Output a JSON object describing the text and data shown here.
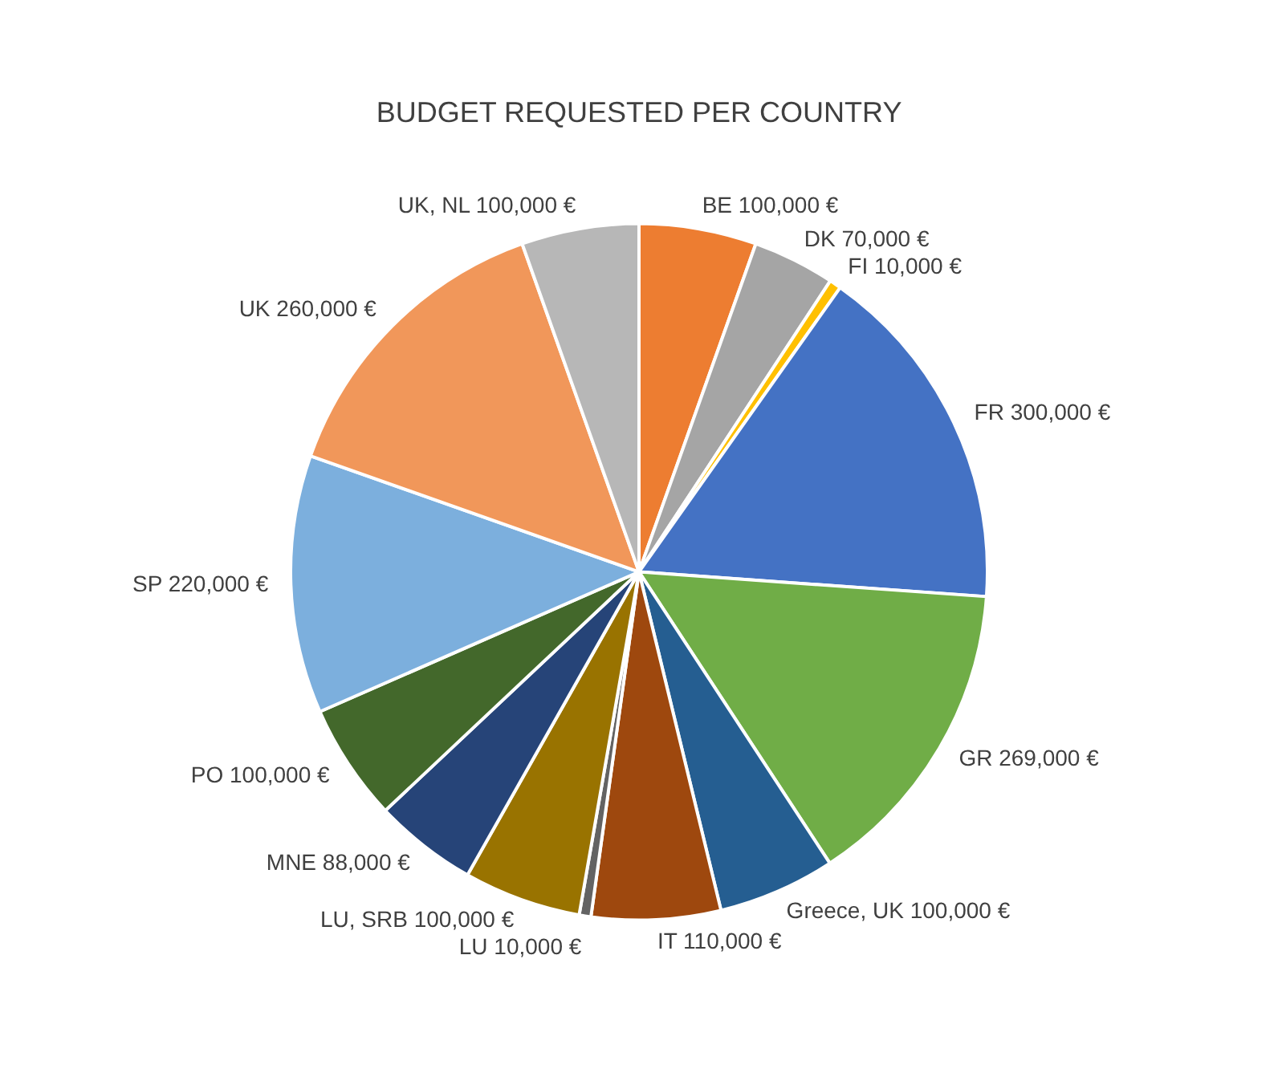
{
  "chart_data": {
    "type": "pie",
    "title": "BUDGET REQUESTED PER COUNTRY",
    "categories": [
      "BE",
      "DK",
      "FI",
      "FR",
      "GR",
      "Greece, UK",
      "IT",
      "LU",
      "LU, SRB",
      "MNE",
      "PO",
      "SP",
      "UK",
      "UK, NL"
    ],
    "values": [
      100000,
      70000,
      10000,
      300000,
      269000,
      100000,
      110000,
      10000,
      100000,
      88000,
      100000,
      220000,
      260000,
      100000
    ],
    "value_labels": [
      "100,000 €",
      "70,000 €",
      "10,000 €",
      "300,000 €",
      "269,000 €",
      "100,000 €",
      "110,000 €",
      "10,000 €",
      "100,000 €",
      "88,000 €",
      "100,000 €",
      "220,000 €",
      "260,000 €",
      "100,000 €"
    ],
    "colors": [
      "#ed7d31",
      "#a5a5a5",
      "#ffc000",
      "#4472c4",
      "#70ad47",
      "#255e91",
      "#9e480e",
      "#636363",
      "#997300",
      "#264478",
      "#43682b",
      "#7cafdd",
      "#f1975a",
      "#b7b7b7"
    ],
    "legend": false
  }
}
